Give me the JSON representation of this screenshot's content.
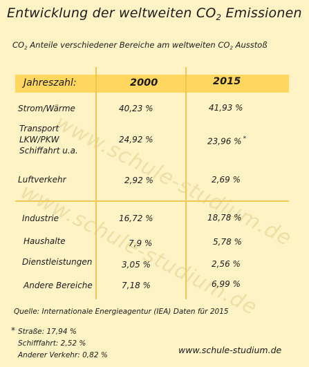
{
  "title": {
    "text": "Entwicklung der weltweiten CO",
    "sub": "2",
    "suffix": " Emissionen"
  },
  "subtitle": {
    "pre": "CO",
    "sub1": "2",
    "mid": " Anteile verschiedener Bereiche am weltweiten CO",
    "sub2": "2",
    "post": " Ausstoß"
  },
  "table": {
    "header": {
      "label": "Jahreszahl:",
      "year1": "2000",
      "year2": "2015"
    },
    "rows": [
      {
        "label": "Strom/Wärme",
        "v2000": "40,23 %",
        "v2015": "41,93 %"
      },
      {
        "label_lines": [
          "Transport",
          "LKW/PKW",
          "Schiffahrt  u.a."
        ],
        "v2000": "24,92 %",
        "v2015": "23,96 %",
        "marker": "*"
      },
      {
        "label": "Luftverkehr",
        "v2000": "2,92 %",
        "v2015": "2,69 %"
      },
      {
        "label": "Industrie",
        "v2000": "16,72 %",
        "v2015": "18,78 %"
      },
      {
        "label": "Haushalte",
        "v2000": "7,9 %",
        "v2015": "5,78 %"
      },
      {
        "label": "Dienstleistungen",
        "v2000": "3,05 %",
        "v2015": "2,56 %"
      },
      {
        "label": "Andere Bereiche",
        "v2000": "7,18 %",
        "v2015": "6,99 %"
      }
    ]
  },
  "source": "Quelle: Internationale Energieagentur (IEA) Daten für 2015",
  "footnotes": {
    "marker": "*",
    "lines": [
      "Straße: 17,94 %",
      "Schifffahrt: 2,52 %",
      "Anderer Verkehr: 0,82 %"
    ]
  },
  "website": "www.schule-studium.de",
  "watermark": "www.schule-studium.de",
  "colors": {
    "background": "#fdf3c4",
    "header_bar": "#ffd75e",
    "grid_lines": "#f2c653"
  }
}
